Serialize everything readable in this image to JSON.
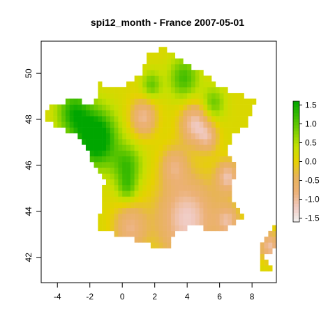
{
  "chart_data": {
    "type": "heatmap",
    "title": "spi12_month - France 2007-05-01",
    "xlabel": "",
    "ylabel": "",
    "xlim": [
      -5.0,
      9.5
    ],
    "ylim": [
      40.9,
      51.4
    ],
    "x_ticks": [
      -4,
      -2,
      0,
      2,
      4,
      6,
      8
    ],
    "x_tick_labels": [
      "-4",
      "-2",
      "0",
      "2",
      "4",
      "6",
      "8"
    ],
    "y_ticks": [
      42,
      44,
      46,
      48,
      50
    ],
    "y_tick_labels": [
      "42",
      "44",
      "46",
      "48",
      "50"
    ],
    "colorbar": {
      "range": [
        -1.6,
        1.6
      ],
      "ticks": [
        1.5,
        1.0,
        0.5,
        0.0,
        -0.5,
        -1.0,
        -1.5
      ],
      "tick_labels": [
        "1.5",
        "1.0",
        "0.5",
        "0.0",
        "-0.5",
        "-1.0",
        "-1.5"
      ],
      "colors": [
        "#00a600",
        "#3bbb00",
        "#7ccf00",
        "#c4e000",
        "#e6d200",
        "#e8b35a",
        "#ecb176",
        "#f0c9c0",
        "#f2f2f2"
      ]
    },
    "grid": false,
    "legend_position": "right"
  }
}
